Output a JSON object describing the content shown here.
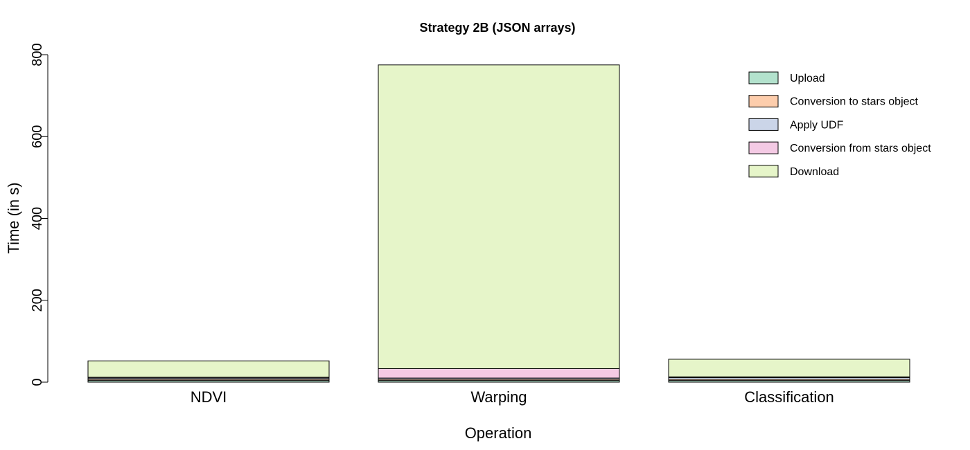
{
  "chart_data": {
    "type": "bar",
    "stacked": true,
    "title": "Strategy 2B (JSON arrays)",
    "xlabel": "Operation",
    "ylabel": "Time (in s)",
    "ylim": [
      0,
      800
    ],
    "yticks": [
      0,
      200,
      400,
      600,
      800
    ],
    "grid": false,
    "legend_position": "top-right",
    "categories": [
      "NDVI",
      "Warping",
      "Classification"
    ],
    "series": [
      {
        "name": "Upload",
        "color": "#b3e2cd",
        "values": [
          4,
          4,
          4
        ]
      },
      {
        "name": "Conversion to stars object",
        "color": "#fdcdac",
        "values": [
          3,
          3,
          3
        ]
      },
      {
        "name": "Apply UDF",
        "color": "#cbd5e8",
        "values": [
          3,
          3,
          4
        ]
      },
      {
        "name": "Conversion from stars object",
        "color": "#f4cae4",
        "values": [
          2,
          23,
          2
        ]
      },
      {
        "name": "Download",
        "color": "#e6f5c9",
        "values": [
          40,
          742,
          43
        ]
      }
    ]
  }
}
